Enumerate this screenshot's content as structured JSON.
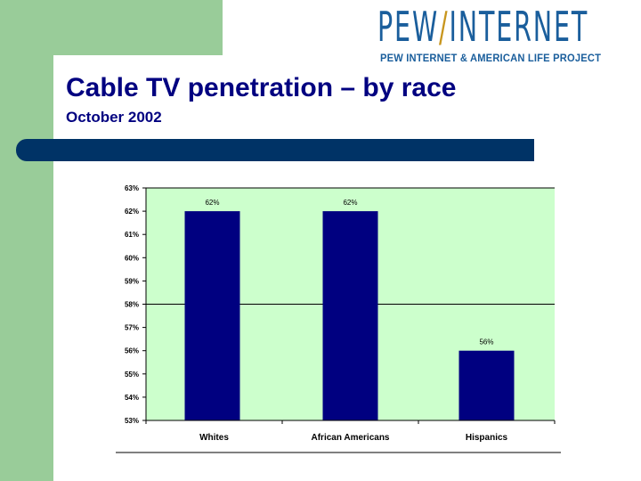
{
  "slide": {
    "title": "Cable TV penetration – by race",
    "subtitle": "October 2002",
    "logo": {
      "main_left": "PEW",
      "slash": "/",
      "main_right": "INTERNET",
      "tagline": "PEW INTERNET & AMERICAN LIFE PROJECT"
    }
  },
  "colors": {
    "green_band": "#99cc99",
    "navy_bar": "#003366",
    "plot_bg": "#ccffcc",
    "bar_fill": "#000080",
    "title_color": "#000080",
    "logo_blue": "#1a5e9c"
  },
  "chart_data": {
    "type": "bar",
    "categories": [
      "Whites",
      "African Americans",
      "Hispanics"
    ],
    "values": [
      62,
      62,
      56
    ],
    "data_labels": [
      "62%",
      "62%",
      "56%"
    ],
    "ylim": [
      53,
      63
    ],
    "yticks": [
      53,
      54,
      55,
      56,
      57,
      58,
      59,
      60,
      61,
      62,
      63
    ],
    "ytick_labels": [
      "53%",
      "54%",
      "55%",
      "56%",
      "57%",
      "58%",
      "59%",
      "60%",
      "61%",
      "62%",
      "63%"
    ],
    "gridlines_at": [
      58,
      63
    ],
    "legend": "none",
    "xlabel": "",
    "ylabel": ""
  }
}
